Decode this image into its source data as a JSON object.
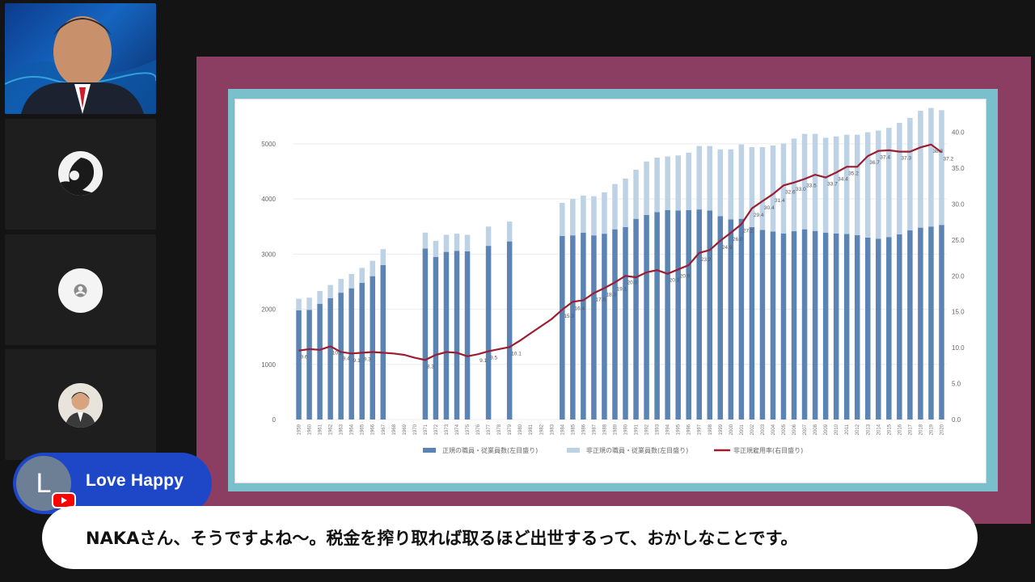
{
  "participants": [
    {
      "name": "video-host"
    },
    {
      "name": "participant-2"
    },
    {
      "name": "participant-3"
    },
    {
      "name": "participant-4"
    }
  ],
  "comment": {
    "initial": "L",
    "author": "Love Happy",
    "text": "NAKAさん、そうですよね〜。税金を搾り取れば取るほど出世するって、おかしなことです。"
  },
  "colors": {
    "bar_regular": "#5b84b4",
    "bar_nonregular": "#bdd2e4",
    "line": "#9c1d31",
    "frame": "#8c3d62",
    "slide_border": "#7ac0cc",
    "chip": "#1e47c7"
  },
  "chart_data": {
    "type": "bar",
    "title": "",
    "legend": [
      "正規の職員・従業員数(左目盛り)",
      "非正規の職員・従業員数(左目盛り)",
      "非正規雇用率(右目盛り)"
    ],
    "left_ticks": [
      "0",
      "1000",
      "2000",
      "3000",
      "4000",
      "5000"
    ],
    "right_ticks": [
      "0.0",
      "5.0",
      "10.0",
      "15.0",
      "20.0",
      "25.0",
      "30.0",
      "35.0",
      "40.0"
    ],
    "ylim_left": [
      0,
      5600
    ],
    "ylim_right": [
      0,
      43
    ],
    "years": [
      "1959",
      "1960",
      "1961",
      "1962",
      "1963",
      "1964",
      "1965",
      "1966",
      "1967",
      "1968",
      "1969",
      "1970",
      "1971",
      "1972",
      "1973",
      "1974",
      "1975",
      "1976",
      "1977",
      "1978",
      "1979",
      "1980",
      "1981",
      "1982",
      "1983",
      "1984",
      "1985",
      "1986",
      "1987",
      "1988",
      "1989",
      "1990",
      "1991",
      "1992",
      "1993",
      "1994",
      "1995",
      "1996",
      "1997",
      "1998",
      "1999",
      "2000",
      "2001",
      "2002",
      "2003",
      "2004",
      "2005",
      "2006",
      "2007",
      "2008",
      "2009",
      "2010",
      "2011",
      "2012",
      "2013",
      "2014",
      "2015",
      "2016",
      "2017",
      "2018",
      "2019",
      "2020"
    ],
    "series": [
      {
        "name": "正規の職員・従業員数(左目盛り)",
        "values": [
          1980,
          1990,
          2100,
          2200,
          2300,
          2380,
          2480,
          2600,
          2800,
          null,
          null,
          null,
          3100,
          2950,
          3040,
          3060,
          3050,
          null,
          3150,
          null,
          3230,
          null,
          null,
          null,
          null,
          3330,
          3340,
          3390,
          3340,
          3370,
          3450,
          3490,
          3640,
          3710,
          3760,
          3800,
          3790,
          3800,
          3810,
          3790,
          3690,
          3630,
          3640,
          3490,
          3440,
          3410,
          3375,
          3415,
          3450,
          3420,
          3390,
          3375,
          3365,
          3345,
          3300,
          3280,
          3310,
          3360,
          3430,
          3480,
          3500,
          3530
        ]
      },
      {
        "name": "非正規の職員・従業員数(左目盛り)",
        "values": [
          210,
          220,
          230,
          240,
          250,
          260,
          270,
          280,
          290,
          null,
          null,
          null,
          290,
          290,
          310,
          310,
          300,
          null,
          350,
          null,
          360,
          null,
          null,
          null,
          null,
          600,
          660,
          670,
          710,
          750,
          820,
          880,
          890,
          970,
          990,
          970,
          1000,
          1040,
          1150,
          1170,
          1210,
          1270,
          1350,
          1450,
          1500,
          1560,
          1630,
          1680,
          1730,
          1760,
          1720,
          1760,
          1800,
          1820,
          1910,
          1960,
          1980,
          2020,
          2040,
          2120,
          2150,
          2080
        ]
      },
      {
        "name": "非正規雇用率(右目盛り)",
        "values": [
          9.6,
          9.8,
          9.7,
          10.2,
          9.4,
          9.2,
          9.3,
          9.4,
          9.3,
          9.2,
          9.0,
          8.6,
          8.3,
          9.0,
          9.4,
          9.3,
          8.8,
          9.1,
          9.5,
          9.8,
          10.1,
          11.0,
          12.0,
          13.0,
          14.0,
          15.3,
          16.4,
          16.6,
          17.6,
          18.3,
          19.1,
          20.0,
          19.8,
          20.5,
          20.8,
          20.3,
          20.9,
          21.5,
          23.2,
          23.6,
          24.9,
          26.0,
          27.2,
          29.4,
          30.4,
          31.4,
          32.6,
          33.0,
          33.5,
          34.1,
          33.7,
          34.4,
          35.2,
          35.2,
          36.7,
          37.4,
          37.5,
          37.3,
          37.3,
          37.9,
          38.3,
          37.2
        ]
      }
    ],
    "data_labels": [
      "9.6",
      "10.2",
      "9.1",
      "9.3",
      "8.3",
      "9.4",
      "9.1",
      "9.5",
      "10.1",
      "15.3",
      "16.4",
      "17.6",
      "18.3",
      "19.1",
      "20.0",
      "20.3",
      "20.9",
      "23.2",
      "24.9",
      "26.0",
      "27.2",
      "29.4",
      "30.4",
      "31.4",
      "32.6",
      "33.0",
      "33.5",
      "33.7",
      "34.4",
      "35.2",
      "36.7",
      "37.4",
      "37.3",
      "38.3",
      "37.2"
    ]
  }
}
